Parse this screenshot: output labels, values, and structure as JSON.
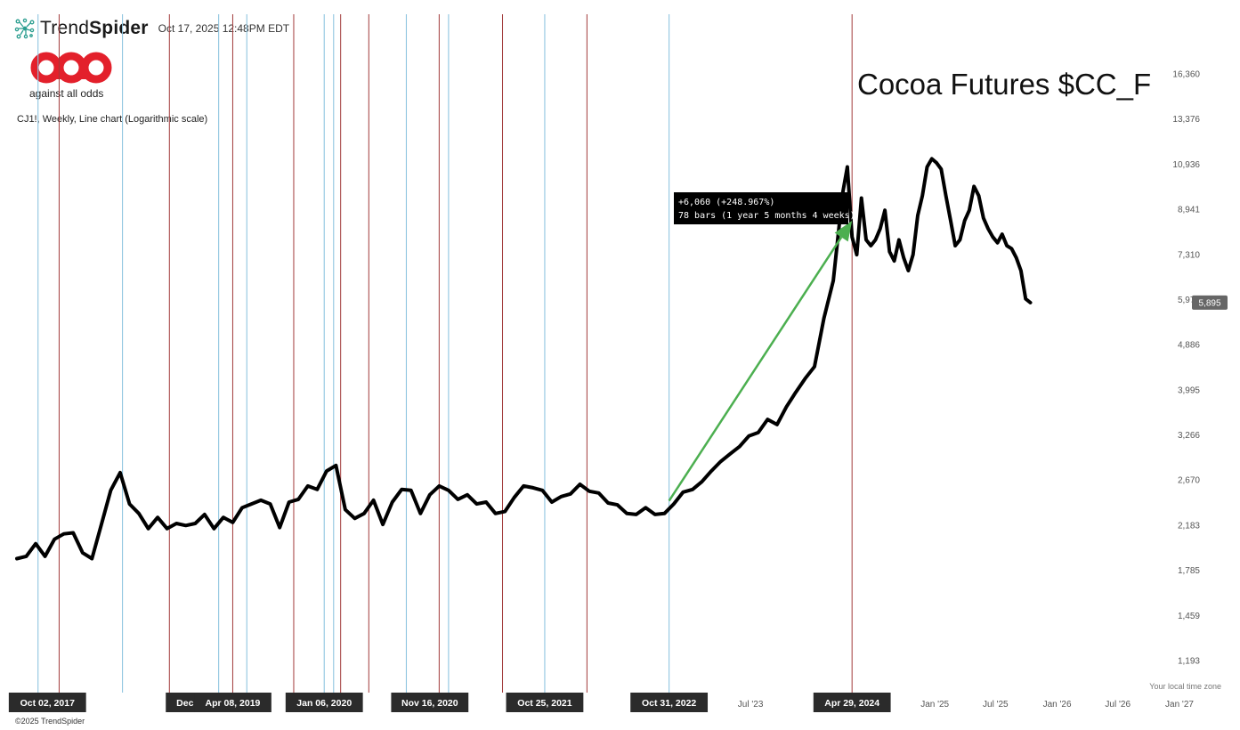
{
  "header": {
    "brand_light": "Trend",
    "brand_bold": "Spider",
    "timestamp": "Oct 17, 2025 12:48PM EDT"
  },
  "logo": {
    "mark": "aao",
    "tagline": "against all odds",
    "color": "#e3202b"
  },
  "subtitle": "CJ1!, Weekly, Line chart (Logarithmic scale)",
  "footer": {
    "copyright": "©2025 TrendSpider",
    "timezone_note": "Your local time zone"
  },
  "chart_data": {
    "type": "line",
    "title": "Cocoa Futures $CC_F",
    "yscale": "log",
    "ylim": [
      1050,
      17500
    ],
    "y_ticks": [
      16360,
      13376,
      10936,
      8941,
      7310,
      5976,
      4886,
      3995,
      3266,
      2670,
      2183,
      1785,
      1459,
      1193
    ],
    "x_ticks": [
      {
        "label": "Jul '23",
        "date": "2023-07-01"
      },
      {
        "label": "Jan '25",
        "date": "2025-01-01"
      },
      {
        "label": "Jul '25",
        "date": "2025-07-01"
      },
      {
        "label": "Jan '26",
        "date": "2026-01-01"
      },
      {
        "label": "Jul '26",
        "date": "2026-07-01"
      },
      {
        "label": "Jan '27",
        "date": "2027-01-01"
      }
    ],
    "date_labels": [
      {
        "label": "Oct 02, 2017",
        "date": "2017-10-02"
      },
      {
        "label": "Dec 2, ",
        "date": "2018-12-02"
      },
      {
        "label": "Apr 08, 2019",
        "date": "2019-04-08"
      },
      {
        "label": "Jan 06, 2020",
        "date": "2020-01-06"
      },
      {
        "label": "Nov 16, 2020",
        "date": "2020-11-16"
      },
      {
        "label": "Oct 25, 2021",
        "date": "2021-10-25"
      },
      {
        "label": "Oct 31, 2022",
        "date": "2022-10-31"
      },
      {
        "label": "Apr 29, 2024",
        "date": "2024-04-29"
      }
    ],
    "series": [
      {
        "color": "#000000",
        "points": [
          [
            "2017-07-03",
            1880
          ],
          [
            "2017-07-31",
            1900
          ],
          [
            "2017-08-28",
            2010
          ],
          [
            "2017-09-25",
            1900
          ],
          [
            "2017-10-23",
            2050
          ],
          [
            "2017-11-20",
            2100
          ],
          [
            "2017-12-18",
            2110
          ],
          [
            "2018-01-15",
            1930
          ],
          [
            "2018-02-12",
            1880
          ],
          [
            "2018-03-12",
            2190
          ],
          [
            "2018-04-09",
            2550
          ],
          [
            "2018-05-07",
            2760
          ],
          [
            "2018-06-04",
            2400
          ],
          [
            "2018-07-02",
            2300
          ],
          [
            "2018-07-30",
            2150
          ],
          [
            "2018-08-27",
            2260
          ],
          [
            "2018-09-24",
            2150
          ],
          [
            "2018-10-22",
            2200
          ],
          [
            "2018-11-19",
            2180
          ],
          [
            "2018-12-17",
            2200
          ],
          [
            "2019-01-14",
            2290
          ],
          [
            "2019-02-11",
            2150
          ],
          [
            "2019-03-11",
            2260
          ],
          [
            "2019-04-08",
            2210
          ],
          [
            "2019-05-06",
            2360
          ],
          [
            "2019-06-03",
            2400
          ],
          [
            "2019-07-01",
            2440
          ],
          [
            "2019-07-29",
            2400
          ],
          [
            "2019-08-26",
            2160
          ],
          [
            "2019-09-23",
            2420
          ],
          [
            "2019-10-21",
            2450
          ],
          [
            "2019-11-18",
            2600
          ],
          [
            "2019-12-16",
            2560
          ],
          [
            "2020-01-13",
            2780
          ],
          [
            "2020-02-10",
            2850
          ],
          [
            "2020-03-09",
            2340
          ],
          [
            "2020-04-06",
            2250
          ],
          [
            "2020-05-04",
            2300
          ],
          [
            "2020-06-01",
            2440
          ],
          [
            "2020-06-29",
            2190
          ],
          [
            "2020-07-27",
            2420
          ],
          [
            "2020-08-24",
            2560
          ],
          [
            "2020-09-21",
            2550
          ],
          [
            "2020-10-19",
            2300
          ],
          [
            "2020-11-16",
            2500
          ],
          [
            "2020-12-14",
            2600
          ],
          [
            "2021-01-11",
            2550
          ],
          [
            "2021-02-08",
            2450
          ],
          [
            "2021-03-08",
            2500
          ],
          [
            "2021-04-05",
            2400
          ],
          [
            "2021-05-03",
            2420
          ],
          [
            "2021-05-31",
            2300
          ],
          [
            "2021-06-28",
            2320
          ],
          [
            "2021-07-26",
            2470
          ],
          [
            "2021-08-23",
            2600
          ],
          [
            "2021-09-20",
            2580
          ],
          [
            "2021-10-18",
            2550
          ],
          [
            "2021-11-15",
            2420
          ],
          [
            "2021-12-13",
            2480
          ],
          [
            "2022-01-10",
            2510
          ],
          [
            "2022-02-07",
            2620
          ],
          [
            "2022-03-07",
            2540
          ],
          [
            "2022-04-04",
            2520
          ],
          [
            "2022-05-02",
            2410
          ],
          [
            "2022-05-30",
            2390
          ],
          [
            "2022-06-27",
            2300
          ],
          [
            "2022-07-25",
            2290
          ],
          [
            "2022-08-22",
            2360
          ],
          [
            "2022-09-19",
            2290
          ],
          [
            "2022-10-17",
            2300
          ],
          [
            "2022-11-14",
            2400
          ],
          [
            "2022-12-12",
            2530
          ],
          [
            "2023-01-09",
            2560
          ],
          [
            "2023-02-06",
            2650
          ],
          [
            "2023-03-06",
            2780
          ],
          [
            "2023-04-03",
            2900
          ],
          [
            "2023-05-01",
            3000
          ],
          [
            "2023-05-29",
            3100
          ],
          [
            "2023-06-26",
            3250
          ],
          [
            "2023-07-24",
            3300
          ],
          [
            "2023-08-21",
            3500
          ],
          [
            "2023-09-18",
            3420
          ],
          [
            "2023-10-16",
            3700
          ],
          [
            "2023-11-13",
            3950
          ],
          [
            "2023-12-11",
            4200
          ],
          [
            "2024-01-08",
            4430
          ],
          [
            "2024-02-05",
            5500
          ],
          [
            "2024-03-04",
            6500
          ],
          [
            "2024-04-01",
            9600
          ],
          [
            "2024-04-15",
            10800
          ],
          [
            "2024-04-29",
            7900
          ],
          [
            "2024-05-13",
            7300
          ],
          [
            "2024-05-27",
            9400
          ],
          [
            "2024-06-10",
            7800
          ],
          [
            "2024-06-24",
            7600
          ],
          [
            "2024-07-08",
            7800
          ],
          [
            "2024-07-22",
            8200
          ],
          [
            "2024-08-05",
            8900
          ],
          [
            "2024-08-19",
            7400
          ],
          [
            "2024-09-02",
            7100
          ],
          [
            "2024-09-16",
            7800
          ],
          [
            "2024-09-30",
            7200
          ],
          [
            "2024-10-14",
            6800
          ],
          [
            "2024-10-28",
            7300
          ],
          [
            "2024-11-11",
            8700
          ],
          [
            "2024-11-25",
            9500
          ],
          [
            "2024-12-09",
            10800
          ],
          [
            "2024-12-23",
            11200
          ],
          [
            "2025-01-06",
            11000
          ],
          [
            "2025-01-20",
            10700
          ],
          [
            "2025-02-03",
            9500
          ],
          [
            "2025-02-17",
            8500
          ],
          [
            "2025-03-03",
            7600
          ],
          [
            "2025-03-17",
            7800
          ],
          [
            "2025-03-31",
            8500
          ],
          [
            "2025-04-14",
            8900
          ],
          [
            "2025-04-28",
            9900
          ],
          [
            "2025-05-12",
            9500
          ],
          [
            "2025-05-26",
            8600
          ],
          [
            "2025-06-09",
            8200
          ],
          [
            "2025-06-23",
            7900
          ],
          [
            "2025-07-07",
            7700
          ],
          [
            "2025-07-21",
            8000
          ],
          [
            "2025-08-04",
            7600
          ],
          [
            "2025-08-18",
            7500
          ],
          [
            "2025-09-01",
            7200
          ],
          [
            "2025-09-15",
            6800
          ],
          [
            "2025-09-29",
            5995
          ],
          [
            "2025-10-13",
            5895
          ]
        ]
      }
    ],
    "last_value_label": "5,895",
    "cycle_lines": {
      "blue": [
        "2017-09-04",
        "2018-05-14",
        "2019-02-25",
        "2019-05-20",
        "2020-01-06",
        "2020-02-03",
        "2020-09-07",
        "2021-01-11",
        "2021-10-25",
        "2022-10-31"
      ],
      "red": [
        "2017-11-06",
        "2018-10-01",
        "2019-04-08",
        "2019-10-07",
        "2020-02-24",
        "2020-05-18",
        "2020-12-14",
        "2021-06-21",
        "2022-02-28",
        "2024-04-29"
      ]
    },
    "measurement": {
      "from": {
        "date": "2022-10-31",
        "value": 2434
      },
      "to": {
        "date": "2024-04-29",
        "value": 8494
      },
      "line1": "+6,060 (+248.967%)",
      "line2": "78 bars (1 year 5 months 4 weeks)",
      "color": "#4caf50"
    },
    "grid": false,
    "legend": "none"
  }
}
